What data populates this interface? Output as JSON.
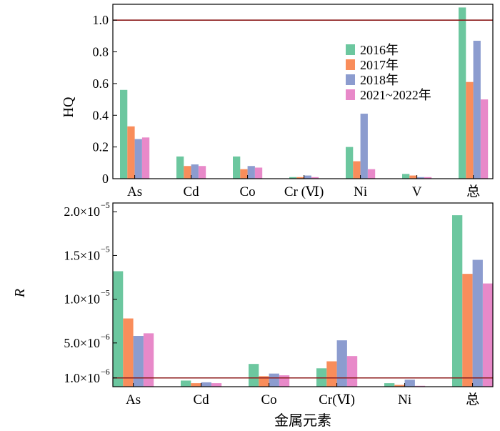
{
  "legend": [
    "2016年",
    "2017年",
    "2018年",
    "2021~2022年"
  ],
  "colors": [
    "#6cc79f",
    "#f98d5b",
    "#8c9ccf",
    "#e889c9"
  ],
  "threshold_color": "#8b1a1a",
  "chart_data": [
    {
      "type": "bar",
      "title": "",
      "xlabel": "",
      "ylabel": "HQ",
      "ylim": [
        0,
        1.1
      ],
      "yticks": [
        "0",
        "0.2",
        "0.4",
        "0.6",
        "0.8",
        "1.0"
      ],
      "ytick_values": [
        0,
        0.2,
        0.4,
        0.6,
        0.8,
        1.0
      ],
      "categories": [
        "As",
        "Cd",
        "Co",
        "Cr (Ⅵ)",
        "Ni",
        "V",
        "总"
      ],
      "series": [
        {
          "name": "2016年",
          "values": [
            0.56,
            0.14,
            0.14,
            0.01,
            0.2,
            0.03,
            1.08
          ]
        },
        {
          "name": "2017年",
          "values": [
            0.33,
            0.08,
            0.06,
            0.01,
            0.11,
            0.02,
            0.61
          ]
        },
        {
          "name": "2018年",
          "values": [
            0.25,
            0.09,
            0.08,
            0.02,
            0.41,
            0.01,
            0.87
          ]
        },
        {
          "name": "2021~2022年",
          "values": [
            0.26,
            0.08,
            0.07,
            0.01,
            0.06,
            0.01,
            0.5
          ]
        }
      ],
      "threshold": 1.0,
      "legend_position": "upper-right",
      "grid": false
    },
    {
      "type": "bar",
      "title": "",
      "xlabel": "金属元素",
      "ylabel": "R",
      "ylim": [
        0,
        2.1e-05
      ],
      "ytick_values": [
        1e-06,
        5e-06,
        1e-05,
        1.5e-05,
        2e-05
      ],
      "yticks": [
        {
          "mantissa": "1.0",
          "exp": "−6"
        },
        {
          "mantissa": "5.0",
          "exp": "−6"
        },
        {
          "mantissa": "1.0",
          "exp": "−5"
        },
        {
          "mantissa": "1.5",
          "exp": "−5"
        },
        {
          "mantissa": "2.0",
          "exp": "−5"
        }
      ],
      "times_sign": "×10",
      "categories": [
        "As",
        "Cd",
        "Co",
        "Cr(Ⅵ)",
        "Ni",
        "总"
      ],
      "series": [
        {
          "name": "2016年",
          "values": [
            1.32e-05,
            7e-07,
            2.6e-06,
            2.1e-06,
            4e-07,
            1.96e-05
          ]
        },
        {
          "name": "2017年",
          "values": [
            7.8e-06,
            4e-07,
            1.2e-06,
            2.9e-06,
            2e-07,
            1.29e-05
          ]
        },
        {
          "name": "2018年",
          "values": [
            5.8e-06,
            5e-07,
            1.5e-06,
            5.3e-06,
            8e-07,
            1.45e-05
          ]
        },
        {
          "name": "2021~2022年",
          "values": [
            6.1e-06,
            4e-07,
            1.3e-06,
            3.5e-06,
            1e-07,
            1.18e-05
          ]
        }
      ],
      "threshold": 1e-06,
      "grid": false
    }
  ]
}
